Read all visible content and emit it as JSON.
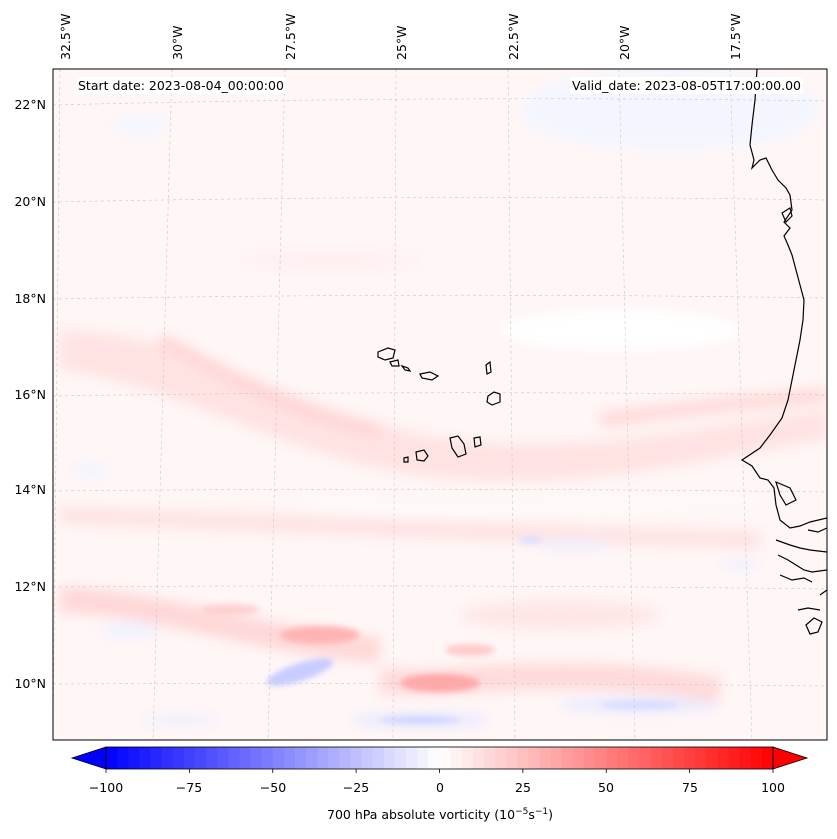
{
  "map": {
    "lon_labels": [
      "32.5°W",
      "30°W",
      "27.5°W",
      "25°W",
      "22.5°W",
      "20°W",
      "17.5°W"
    ],
    "lat_labels": [
      "22°N",
      "20°N",
      "18°N",
      "16°N",
      "14°N",
      "12°N",
      "10°N"
    ],
    "start_date": "Start date: 2023-08-04_00:00:00",
    "valid_date": "Valid_date: 2023-08-05T17:00:00.00",
    "extent": {
      "lon_min": -33.0,
      "lon_max": -16.3,
      "lat_min": 8.9,
      "lat_max": 22.8
    },
    "variable": "700 hPa absolute vorticity"
  },
  "colorbar": {
    "ticks": [
      "−100",
      "−75",
      "−50",
      "−25",
      "0",
      "25",
      "50",
      "75",
      "100"
    ],
    "label_prefix": "700 hPa absolute vorticity (10",
    "label_exp1": "−5",
    "label_mid": "s",
    "label_exp2": "−1",
    "label_suffix": ")",
    "vmin": -100,
    "vmax": 100,
    "levels": 60,
    "colors": {
      "negative": "#0000ff",
      "zero": "#ffffff",
      "positive": "#ff0000"
    }
  }
}
